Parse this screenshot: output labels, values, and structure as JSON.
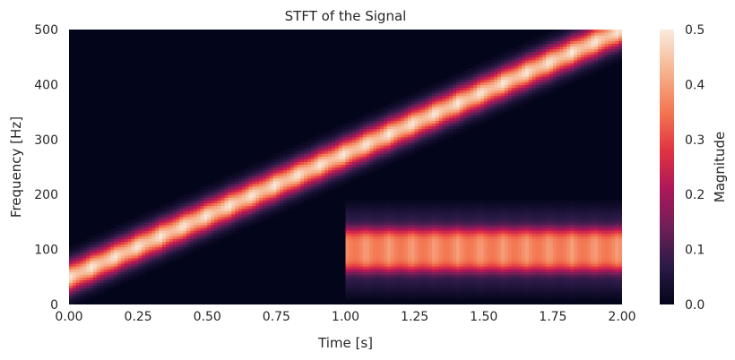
{
  "chart_data": {
    "type": "heatmap",
    "title": "STFT of the Signal",
    "xlabel": "Time [s]",
    "ylabel": "Frequency [Hz]",
    "xlim": [
      0,
      2
    ],
    "ylim": [
      0,
      500
    ],
    "x_ticks": [
      "0.00",
      "0.25",
      "0.50",
      "0.75",
      "1.00",
      "1.25",
      "1.50",
      "1.75",
      "2.00"
    ],
    "y_ticks": [
      "0",
      "100",
      "200",
      "300",
      "400",
      "500"
    ],
    "colorbar": {
      "label": "Magnitude",
      "range": [
        0,
        0.5
      ],
      "ticks": [
        "0.0",
        "0.1",
        "0.2",
        "0.3",
        "0.4",
        "0.5"
      ],
      "colormap": "rocket",
      "colors": [
        "#03051a",
        "#2b1a47",
        "#701f57",
        "#ad1759",
        "#e13342",
        "#f37651",
        "#f6b48f",
        "#faebdd"
      ]
    },
    "components": [
      {
        "name": "chirp",
        "t_start": 0.0,
        "t_end": 2.0,
        "f_start": 50,
        "f_end": 500,
        "magnitude": 0.5,
        "band_halfwidth_hz": 25
      },
      {
        "name": "tone",
        "t_start": 1.0,
        "t_end": 2.0,
        "f_center": 100,
        "magnitude": 0.4,
        "band_halfwidth_hz": 35
      }
    ],
    "grid": false
  }
}
